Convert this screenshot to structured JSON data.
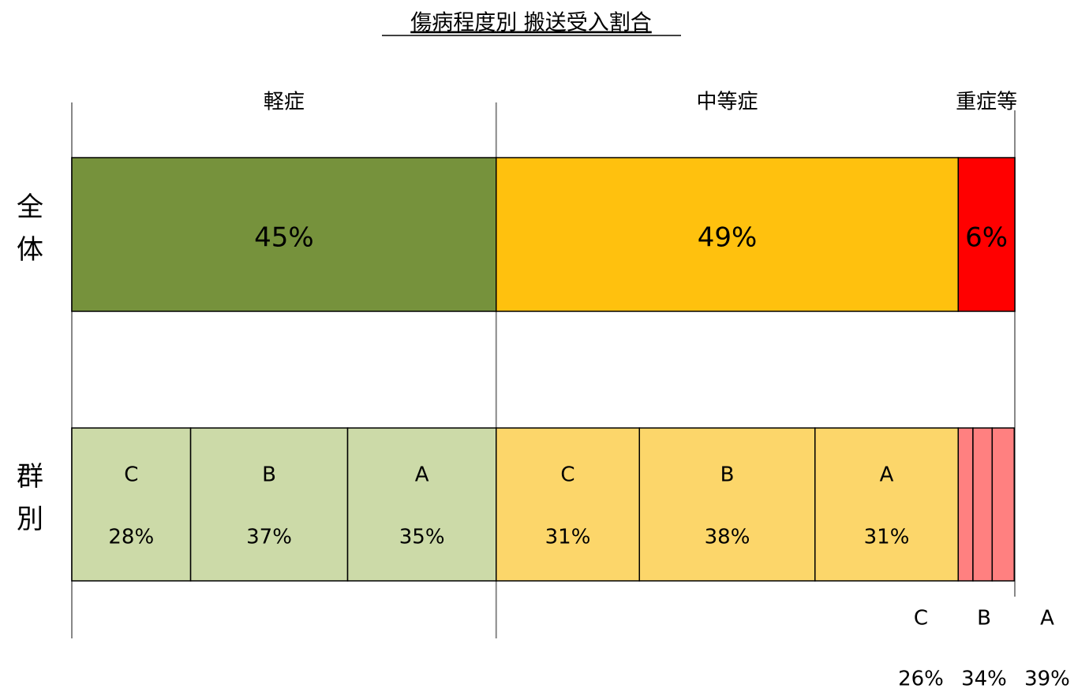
{
  "chart_data": {
    "type": "mekko",
    "title": "傷病程度別 搬送受入割合",
    "row_labels": [
      "全体",
      "群別"
    ],
    "severity": {
      "names": [
        "軽症",
        "中等症",
        "重症等"
      ],
      "values": [
        45,
        49,
        6
      ],
      "value_labels": [
        "45%",
        "49%",
        "6%"
      ],
      "colors": [
        "#76923c",
        "#ffc10e",
        "#ff0000"
      ]
    },
    "groups": {
      "names": [
        [
          "C",
          "B",
          "A"
        ],
        [
          "C",
          "B",
          "A"
        ],
        [
          "C",
          "B",
          "A"
        ]
      ],
      "values": [
        [
          28,
          37,
          35
        ],
        [
          31,
          38,
          31
        ],
        [
          26,
          34,
          39
        ]
      ],
      "value_labels": [
        [
          "28%",
          "37%",
          "35%"
        ],
        [
          "31%",
          "38%",
          "31%"
        ],
        [
          "26%",
          "34%",
          "39%"
        ]
      ],
      "colors": [
        "#ccdaa8",
        "#fcd66a",
        "#ff8080"
      ]
    }
  }
}
